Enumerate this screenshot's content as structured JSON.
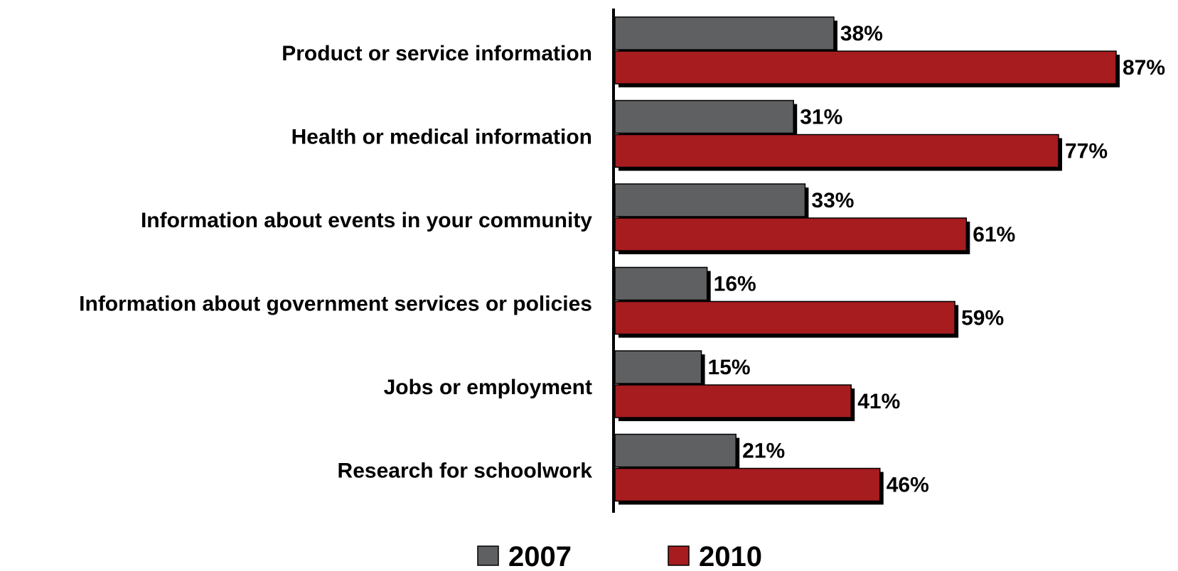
{
  "chart_data": {
    "type": "bar",
    "orientation": "horizontal",
    "categories": [
      "Product or service information",
      "Health or medical information",
      "Information about events in your community",
      "Information about government services or policies",
      "Jobs or employment",
      "Research for schoolwork"
    ],
    "series": [
      {
        "name": "2007",
        "color": "#5f6062",
        "values": [
          38,
          31,
          33,
          16,
          15,
          21
        ],
        "labels": [
          "38%",
          "31%",
          "33%",
          "16%",
          "15%",
          "21%"
        ]
      },
      {
        "name": "2010",
        "color": "#a61c1f",
        "values": [
          87,
          77,
          61,
          59,
          41,
          46
        ],
        "labels": [
          "87%",
          "77%",
          "61%",
          "59%",
          "41%",
          "46%"
        ]
      }
    ],
    "xlim": [
      0,
      100
    ],
    "grid": false,
    "legend_position": "bottom",
    "title": "",
    "xlabel": "",
    "ylabel": ""
  }
}
